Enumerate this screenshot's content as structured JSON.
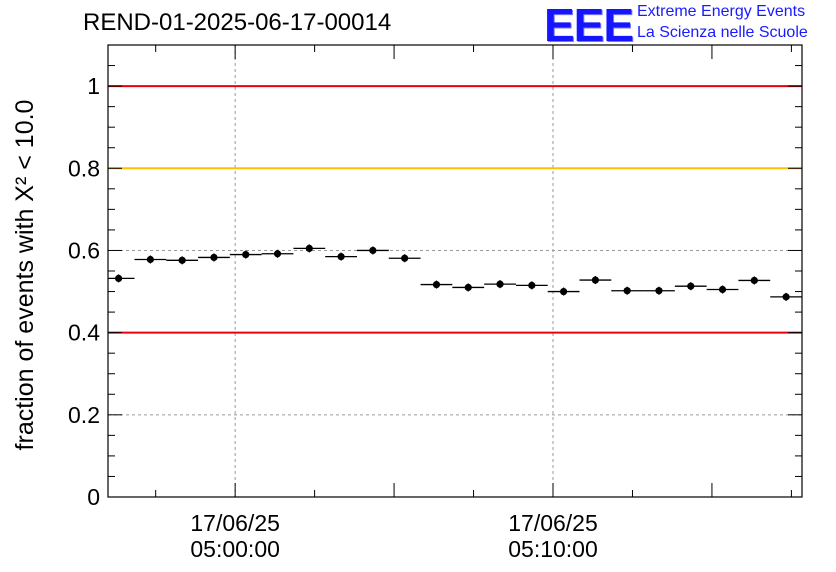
{
  "header": {
    "title": "REND-01-2025-06-17-00014",
    "logo": {
      "mark": "EEE",
      "line1": "Extreme Energy Events",
      "line2": "La Scienza nelle Scuole",
      "color": "#1515ff"
    }
  },
  "chart_data": {
    "type": "scatter",
    "ylabel": "fraction of events with X² < 10.0",
    "xlabel": "",
    "ylim": [
      0,
      1.1
    ],
    "yticks": [
      0,
      0.2,
      0.4,
      0.6,
      0.8,
      1
    ],
    "ytick_labels": [
      "0",
      "0.2",
      "0.4",
      "0.6",
      "0.8",
      "1"
    ],
    "x_time_ticks": [
      {
        "time": "05:00:00",
        "date": "17/06/25"
      },
      {
        "time": "05:10:00",
        "date": "17/06/25"
      }
    ],
    "xlim": [
      "04:56:00",
      "05:17:50"
    ],
    "grid": true,
    "reference_lines": [
      {
        "y": 1.0,
        "color": "#e8000b"
      },
      {
        "y": 0.8,
        "color": "#ffc000"
      },
      {
        "y": 0.4,
        "color": "#e8000b"
      }
    ],
    "points": [
      {
        "x": "04:56:20",
        "y": 0.532
      },
      {
        "x": "04:57:20",
        "y": 0.578
      },
      {
        "x": "04:58:20",
        "y": 0.576
      },
      {
        "x": "04:59:20",
        "y": 0.583
      },
      {
        "x": "05:00:20",
        "y": 0.59
      },
      {
        "x": "05:01:20",
        "y": 0.592
      },
      {
        "x": "05:02:20",
        "y": 0.605
      },
      {
        "x": "05:03:20",
        "y": 0.585
      },
      {
        "x": "05:04:20",
        "y": 0.6
      },
      {
        "x": "05:05:20",
        "y": 0.581
      },
      {
        "x": "05:06:20",
        "y": 0.517
      },
      {
        "x": "05:07:20",
        "y": 0.51
      },
      {
        "x": "05:08:20",
        "y": 0.518
      },
      {
        "x": "05:09:20",
        "y": 0.515
      },
      {
        "x": "05:10:20",
        "y": 0.5
      },
      {
        "x": "05:11:20",
        "y": 0.528
      },
      {
        "x": "05:12:20",
        "y": 0.502
      },
      {
        "x": "05:13:20",
        "y": 0.502
      },
      {
        "x": "05:14:20",
        "y": 0.513
      },
      {
        "x": "05:15:20",
        "y": 0.505
      },
      {
        "x": "05:16:20",
        "y": 0.527
      },
      {
        "x": "05:17:20",
        "y": 0.487
      }
    ],
    "bin_half_width_seconds": 30
  }
}
